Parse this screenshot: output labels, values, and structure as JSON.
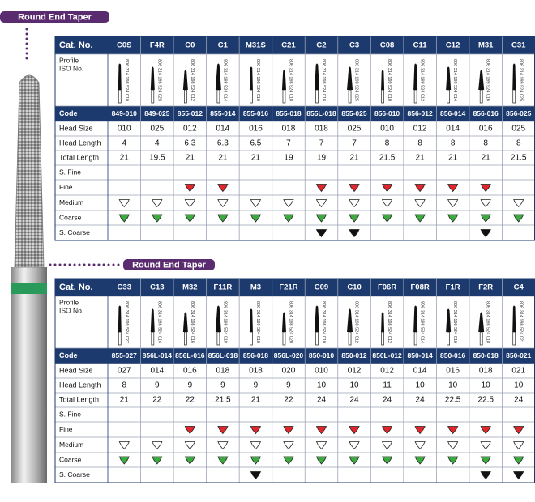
{
  "tables": [
    {
      "title": "Round End Taper",
      "header_label": "Cat. No.",
      "columns": [
        "C0S",
        "F4R",
        "C0",
        "C1",
        "M31S",
        "C21",
        "C2",
        "C3",
        "C08",
        "C11",
        "C12",
        "M31",
        "C31"
      ],
      "profile_label": [
        "Profile",
        "ISO No."
      ],
      "iso": [
        "806 314 198 524 010",
        "806 314 198 524 025",
        "806 314 198 524 012",
        "806 314 198 524 014",
        "806 314 198 524 016",
        "806 314 198 524 018",
        "806 314 198 524 018",
        "806 314 198 524 025",
        "806 314 199 524 010",
        "806 314 199 524 012",
        "806 314 199 524 014",
        "806 314 199 524 016",
        "806 314 199 524 025"
      ],
      "rows": [
        {
          "label": "Code",
          "values": [
            "849-010",
            "849-025",
            "855-012",
            "855-014",
            "855-016",
            "855-018",
            "855L-018",
            "855-025",
            "856-010",
            "856-012",
            "856-014",
            "856-016",
            "856-025"
          ]
        },
        {
          "label": "Head Size",
          "values": [
            "010",
            "025",
            "012",
            "014",
            "016",
            "018",
            "018",
            "025",
            "010",
            "012",
            "014",
            "016",
            "025"
          ]
        },
        {
          "label": "Head Length",
          "values": [
            4,
            4,
            6.3,
            6.3,
            6.5,
            7,
            7,
            7,
            8,
            8,
            8,
            8,
            8
          ]
        },
        {
          "label": "Total Length",
          "values": [
            21,
            19.5,
            21,
            21,
            21,
            19,
            19,
            21,
            21.5,
            21,
            21,
            21,
            21.5
          ]
        }
      ],
      "grit": [
        {
          "label": "S. Fine",
          "marks": [
            false,
            false,
            false,
            false,
            false,
            false,
            false,
            false,
            false,
            false,
            false,
            false,
            false
          ]
        },
        {
          "label": "Fine",
          "color": "#e3262b",
          "marks": [
            false,
            false,
            true,
            true,
            false,
            false,
            true,
            true,
            true,
            true,
            true,
            true,
            false
          ]
        },
        {
          "label": "Medium",
          "color": "#ffffff",
          "marks": [
            true,
            true,
            true,
            true,
            true,
            true,
            true,
            true,
            true,
            true,
            true,
            true,
            true
          ]
        },
        {
          "label": "Coarse",
          "color": "#3cab3f",
          "marks": [
            true,
            true,
            true,
            true,
            true,
            true,
            true,
            true,
            true,
            true,
            true,
            true,
            true
          ]
        },
        {
          "label": "S. Coarse",
          "color": "#111111",
          "marks": [
            false,
            false,
            false,
            false,
            false,
            false,
            true,
            true,
            false,
            false,
            false,
            true,
            false
          ]
        }
      ]
    },
    {
      "title": "Round End Taper",
      "header_label": "Cat. No.",
      "columns": [
        "C33",
        "C13",
        "M32",
        "F11R",
        "M3",
        "F21R",
        "C09",
        "C10",
        "F06R",
        "F08R",
        "F1R",
        "F2R",
        "C4"
      ],
      "profile_label": [
        "Profile",
        "ISO No."
      ],
      "iso": [
        "806 314 199 524 027",
        "806 314 198 524 014",
        "806 314 198 524 016",
        "806 314 198 524 018",
        "806 314 199 524 018",
        "806 314 198 524 020",
        "806 314 198 524 010",
        "806 314 198 524 012",
        "806 314 198 524 012",
        "806 314 198 524 014",
        "806 314 198 524 016",
        "806 314 198 524 018",
        "806 314 198 524 021"
      ],
      "rows": [
        {
          "label": "Code",
          "values": [
            "855-027",
            "856L-014",
            "856L-016",
            "856L-018",
            "856-018",
            "856L-020",
            "850-010",
            "850-012",
            "850L-012",
            "850-014",
            "850-016",
            "850-018",
            "850-021"
          ]
        },
        {
          "label": "Head Size",
          "values": [
            "027",
            "014",
            "016",
            "018",
            "018",
            "020",
            "010",
            "012",
            "012",
            "014",
            "016",
            "018",
            "021"
          ]
        },
        {
          "label": "Head Length",
          "values": [
            8,
            9,
            9,
            9,
            9,
            9,
            10,
            10,
            11,
            10,
            10,
            10,
            10
          ]
        },
        {
          "label": "Total Length",
          "values": [
            21,
            22,
            22,
            21.5,
            21,
            22,
            24,
            24,
            24,
            24,
            22.5,
            22.5,
            24
          ]
        }
      ],
      "grit": [
        {
          "label": "S. Fine",
          "marks": [
            false,
            false,
            false,
            false,
            false,
            false,
            false,
            false,
            false,
            false,
            false,
            false,
            false
          ]
        },
        {
          "label": "Fine",
          "color": "#e3262b",
          "marks": [
            false,
            false,
            true,
            true,
            true,
            true,
            true,
            true,
            true,
            true,
            true,
            true,
            true
          ]
        },
        {
          "label": "Medium",
          "color": "#ffffff",
          "marks": [
            true,
            true,
            true,
            true,
            true,
            true,
            true,
            true,
            true,
            true,
            true,
            true,
            true
          ]
        },
        {
          "label": "Coarse",
          "color": "#3cab3f",
          "marks": [
            true,
            true,
            true,
            true,
            true,
            true,
            true,
            true,
            true,
            true,
            true,
            true,
            true
          ]
        },
        {
          "label": "S. Coarse",
          "color": "#111111",
          "marks": [
            false,
            false,
            false,
            false,
            true,
            false,
            false,
            false,
            false,
            false,
            false,
            true,
            true
          ]
        }
      ]
    }
  ]
}
